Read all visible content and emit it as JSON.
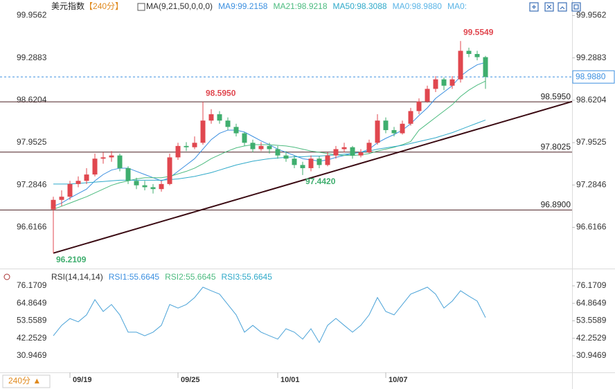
{
  "chart_data": {
    "type": "candlestick",
    "title": "美元指数",
    "period": "【240分】",
    "ma_label": "MA(9,21,50,0,0,0)",
    "period_button": "240分 ▲",
    "up_color": "#e0474f",
    "down_color": "#3fae6e",
    "categories": [
      null,
      null,
      "09/19",
      null,
      null,
      null,
      null,
      null,
      null,
      null,
      null,
      null,
      null,
      null,
      null,
      "09/25",
      null,
      null,
      null,
      null,
      null,
      null,
      null,
      null,
      null,
      null,
      null,
      "10/01",
      null,
      null,
      null,
      null,
      null,
      null,
      null,
      null,
      null,
      null,
      null,
      null,
      "10/07",
      null,
      null,
      null,
      null,
      null,
      null,
      null,
      null,
      null,
      null,
      null,
      null
    ],
    "open": [
      96.9,
      97.05,
      97.1,
      97.3,
      97.35,
      97.45,
      97.7,
      97.72,
      97.75,
      97.55,
      97.35,
      97.28,
      97.25,
      97.22,
      97.3,
      97.72,
      97.9,
      97.88,
      97.95,
      98.3,
      98.4,
      98.3,
      98.2,
      98.1,
      97.95,
      97.85,
      97.9,
      97.85,
      97.75,
      97.7,
      97.6,
      97.55,
      97.7,
      97.6,
      97.75,
      97.85,
      97.88,
      97.75,
      97.8,
      97.95,
      98.3,
      98.15,
      98.1,
      98.25,
      98.45,
      98.6,
      98.8,
      98.95,
      98.85,
      98.95,
      99.4,
      99.35,
      99.3
    ],
    "high": [
      97.1,
      97.2,
      97.35,
      97.42,
      97.55,
      97.78,
      97.8,
      97.82,
      97.78,
      97.58,
      97.4,
      97.35,
      97.3,
      97.35,
      97.78,
      97.95,
      97.96,
      98.05,
      98.595,
      98.48,
      98.45,
      98.35,
      98.25,
      98.12,
      98.0,
      97.96,
      97.95,
      97.9,
      97.82,
      97.75,
      97.65,
      97.75,
      97.74,
      97.8,
      97.9,
      97.95,
      97.9,
      97.85,
      98.0,
      98.4,
      98.35,
      98.2,
      98.3,
      98.5,
      98.65,
      98.85,
      99.0,
      98.98,
      99.0,
      99.5549,
      99.45,
      99.4,
      99.32
    ],
    "low": [
      96.2109,
      96.95,
      97.05,
      97.25,
      97.3,
      97.42,
      97.62,
      97.65,
      97.5,
      97.3,
      97.22,
      97.2,
      97.15,
      97.18,
      97.28,
      97.68,
      97.82,
      97.85,
      97.92,
      98.25,
      98.25,
      98.15,
      98.05,
      97.9,
      97.8,
      97.82,
      97.78,
      97.7,
      97.65,
      97.55,
      97.442,
      97.5,
      97.55,
      97.58,
      97.7,
      97.8,
      97.7,
      97.72,
      97.78,
      97.92,
      98.1,
      98.05,
      98.08,
      98.22,
      98.4,
      98.58,
      98.75,
      98.78,
      98.8,
      98.9,
      99.3,
      99.25,
      98.8
    ],
    "close": [
      97.05,
      97.1,
      97.3,
      97.35,
      97.45,
      97.7,
      97.72,
      97.75,
      97.55,
      97.35,
      97.28,
      97.25,
      97.22,
      97.3,
      97.72,
      97.9,
      97.88,
      97.95,
      98.3,
      98.4,
      98.3,
      98.2,
      98.1,
      97.95,
      97.85,
      97.9,
      97.85,
      97.75,
      97.7,
      97.6,
      97.55,
      97.7,
      97.6,
      97.75,
      97.85,
      97.88,
      97.75,
      97.8,
      97.95,
      98.3,
      98.15,
      98.1,
      98.25,
      98.45,
      98.6,
      98.8,
      98.95,
      98.85,
      98.95,
      99.4,
      99.35,
      99.3,
      98.988
    ],
    "ma_series": [
      {
        "name": "MA9:99.2158",
        "color": "#3b8fe0",
        "values": [
          96.95,
          97.0,
          97.08,
          97.15,
          97.22,
          97.35,
          97.45,
          97.52,
          97.55,
          97.55,
          97.5,
          97.45,
          97.4,
          97.35,
          97.4,
          97.5,
          97.6,
          97.7,
          97.85,
          98.0,
          98.1,
          98.15,
          98.15,
          98.12,
          98.05,
          97.98,
          97.92,
          97.85,
          97.8,
          97.75,
          97.7,
          97.68,
          97.66,
          97.68,
          97.72,
          97.75,
          97.78,
          97.8,
          97.85,
          97.95,
          98.02,
          98.08,
          98.15,
          98.25,
          98.38,
          98.5,
          98.65,
          98.75,
          98.85,
          99.0,
          99.1,
          99.18,
          99.2158
        ]
      },
      {
        "name": "MA21:98.9218",
        "color": "#4cbb7f",
        "values": [
          96.9,
          96.95,
          97.0,
          97.05,
          97.1,
          97.16,
          97.22,
          97.28,
          97.32,
          97.35,
          97.38,
          97.4,
          97.4,
          97.4,
          97.42,
          97.46,
          97.5,
          97.55,
          97.62,
          97.7,
          97.76,
          97.82,
          97.87,
          97.9,
          97.92,
          97.92,
          97.92,
          97.91,
          97.9,
          97.88,
          97.85,
          97.82,
          97.8,
          97.78,
          97.76,
          97.75,
          97.75,
          97.76,
          97.78,
          97.82,
          97.85,
          97.88,
          97.92,
          97.97,
          98.15,
          98.25,
          98.35,
          98.45,
          98.55,
          98.68,
          98.78,
          98.86,
          98.9218
        ]
      },
      {
        "name": "MA50:98.3088",
        "color": "#2fa9c9",
        "values": [
          97.3,
          97.3,
          97.3,
          97.31,
          97.32,
          97.33,
          97.34,
          97.35,
          97.36,
          97.36,
          97.36,
          97.36,
          97.36,
          97.36,
          97.37,
          97.38,
          97.4,
          97.42,
          97.45,
          97.48,
          97.52,
          97.56,
          97.6,
          97.63,
          97.66,
          97.68,
          97.7,
          97.71,
          97.72,
          97.73,
          97.73,
          97.74,
          97.74,
          97.75,
          97.76,
          97.77,
          97.78,
          97.8,
          97.82,
          97.85,
          97.87,
          97.89,
          97.91,
          97.94,
          97.97,
          98.0,
          98.03,
          98.07,
          98.11,
          98.16,
          98.21,
          98.26,
          98.3088
        ]
      }
    ],
    "ma_extra": [
      {
        "name": "MA0:98.9880",
        "color": "#5ab4e6"
      },
      {
        "name": "MA0:",
        "color": "#5ab4e6"
      }
    ],
    "ylim": [
      96.0,
      100.07
    ],
    "yticks": [
      99.9562,
      99.2883,
      98.6204,
      97.9525,
      97.2846,
      96.6166
    ],
    "grid": false,
    "levels": [
      {
        "value": 98.595,
        "label": "98.5950"
      },
      {
        "value": 97.8025,
        "label": "97.8025"
      },
      {
        "value": 96.89,
        "label": "96.8900"
      }
    ],
    "level_color": "#4a1f22",
    "trendline_end": 98.6,
    "last": {
      "value": 98.988,
      "label": "98.9880",
      "color": "#3b8fe0"
    },
    "annotations": [
      {
        "value": 99.5549,
        "label": "99.5549"
      },
      {
        "value": 98.595,
        "label": "98.5950"
      },
      {
        "value": 97.442,
        "label": "97.4420"
      },
      {
        "value": 96.2109,
        "label": "96.2109"
      }
    ],
    "rsi": {
      "label": "RSI(14,14,14)",
      "legend": [
        {
          "name": "RSI1:55.6645",
          "color": "#3b8fe0"
        },
        {
          "name": "RSI2:55.6645",
          "color": "#4cbb7f"
        },
        {
          "name": "RSI3:55.6645",
          "color": "#2fa9c9"
        }
      ],
      "color": "#4ba3d8",
      "values": [
        43.9,
        50.6,
        55.0,
        52.9,
        57.4,
        67.2,
        59.6,
        64.1,
        57.4,
        46.2,
        46.2,
        43.9,
        46.2,
        50.6,
        64.1,
        61.8,
        64.1,
        68.6,
        75.3,
        73.0,
        70.8,
        64.1,
        57.4,
        46.2,
        50.6,
        46.2,
        43.9,
        41.7,
        48.4,
        46.2,
        41.7,
        48.4,
        39.5,
        50.6,
        55.1,
        50.6,
        46.2,
        50.6,
        57.4,
        68.6,
        59.6,
        57.4,
        64.1,
        70.8,
        73.0,
        75.3,
        70.8,
        61.8,
        66.3,
        73.0,
        69.5,
        66.3,
        55.66
      ],
      "ylim": [
        19.3,
        84.2
      ],
      "yticks": [
        76.1709,
        64.8649,
        53.5589,
        42.2529,
        30.9469
      ]
    }
  }
}
